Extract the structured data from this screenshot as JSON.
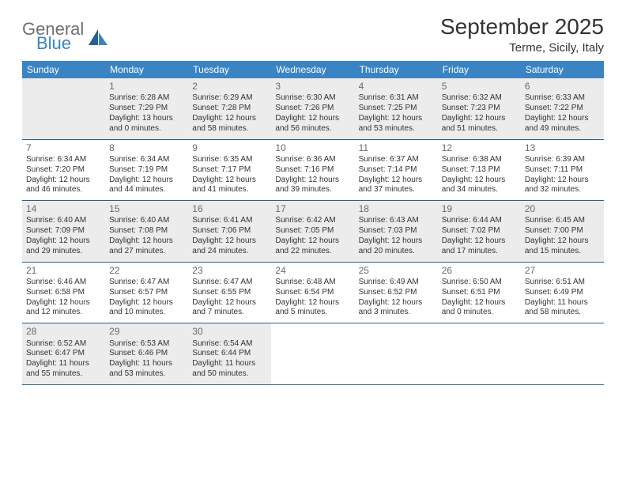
{
  "logo": {
    "word1": "General",
    "word2": "Blue",
    "icon_color": "#2a5f8f"
  },
  "title": "September 2025",
  "location": "Terme, Sicily, Italy",
  "header_bg": "#3a84c4",
  "header_text": "#ffffff",
  "row_border": "#2a5f8f",
  "shade_bg": "#ececec",
  "daynum_color": "#6a6a6a",
  "text_color": "#333333",
  "day_headers": [
    "Sunday",
    "Monday",
    "Tuesday",
    "Wednesday",
    "Thursday",
    "Friday",
    "Saturday"
  ],
  "weeks": [
    [
      {
        "n": "",
        "sunrise": "",
        "sunset": "",
        "daylight": "",
        "shade": true
      },
      {
        "n": "1",
        "sunrise": "Sunrise: 6:28 AM",
        "sunset": "Sunset: 7:29 PM",
        "daylight": "Daylight: 13 hours and 0 minutes.",
        "shade": true
      },
      {
        "n": "2",
        "sunrise": "Sunrise: 6:29 AM",
        "sunset": "Sunset: 7:28 PM",
        "daylight": "Daylight: 12 hours and 58 minutes.",
        "shade": true
      },
      {
        "n": "3",
        "sunrise": "Sunrise: 6:30 AM",
        "sunset": "Sunset: 7:26 PM",
        "daylight": "Daylight: 12 hours and 56 minutes.",
        "shade": true
      },
      {
        "n": "4",
        "sunrise": "Sunrise: 6:31 AM",
        "sunset": "Sunset: 7:25 PM",
        "daylight": "Daylight: 12 hours and 53 minutes.",
        "shade": true
      },
      {
        "n": "5",
        "sunrise": "Sunrise: 6:32 AM",
        "sunset": "Sunset: 7:23 PM",
        "daylight": "Daylight: 12 hours and 51 minutes.",
        "shade": true
      },
      {
        "n": "6",
        "sunrise": "Sunrise: 6:33 AM",
        "sunset": "Sunset: 7:22 PM",
        "daylight": "Daylight: 12 hours and 49 minutes.",
        "shade": true
      }
    ],
    [
      {
        "n": "7",
        "sunrise": "Sunrise: 6:34 AM",
        "sunset": "Sunset: 7:20 PM",
        "daylight": "Daylight: 12 hours and 46 minutes.",
        "shade": false
      },
      {
        "n": "8",
        "sunrise": "Sunrise: 6:34 AM",
        "sunset": "Sunset: 7:19 PM",
        "daylight": "Daylight: 12 hours and 44 minutes.",
        "shade": false
      },
      {
        "n": "9",
        "sunrise": "Sunrise: 6:35 AM",
        "sunset": "Sunset: 7:17 PM",
        "daylight": "Daylight: 12 hours and 41 minutes.",
        "shade": false
      },
      {
        "n": "10",
        "sunrise": "Sunrise: 6:36 AM",
        "sunset": "Sunset: 7:16 PM",
        "daylight": "Daylight: 12 hours and 39 minutes.",
        "shade": false
      },
      {
        "n": "11",
        "sunrise": "Sunrise: 6:37 AM",
        "sunset": "Sunset: 7:14 PM",
        "daylight": "Daylight: 12 hours and 37 minutes.",
        "shade": false
      },
      {
        "n": "12",
        "sunrise": "Sunrise: 6:38 AM",
        "sunset": "Sunset: 7:13 PM",
        "daylight": "Daylight: 12 hours and 34 minutes.",
        "shade": false
      },
      {
        "n": "13",
        "sunrise": "Sunrise: 6:39 AM",
        "sunset": "Sunset: 7:11 PM",
        "daylight": "Daylight: 12 hours and 32 minutes.",
        "shade": false
      }
    ],
    [
      {
        "n": "14",
        "sunrise": "Sunrise: 6:40 AM",
        "sunset": "Sunset: 7:09 PM",
        "daylight": "Daylight: 12 hours and 29 minutes.",
        "shade": true
      },
      {
        "n": "15",
        "sunrise": "Sunrise: 6:40 AM",
        "sunset": "Sunset: 7:08 PM",
        "daylight": "Daylight: 12 hours and 27 minutes.",
        "shade": true
      },
      {
        "n": "16",
        "sunrise": "Sunrise: 6:41 AM",
        "sunset": "Sunset: 7:06 PM",
        "daylight": "Daylight: 12 hours and 24 minutes.",
        "shade": true
      },
      {
        "n": "17",
        "sunrise": "Sunrise: 6:42 AM",
        "sunset": "Sunset: 7:05 PM",
        "daylight": "Daylight: 12 hours and 22 minutes.",
        "shade": true
      },
      {
        "n": "18",
        "sunrise": "Sunrise: 6:43 AM",
        "sunset": "Sunset: 7:03 PM",
        "daylight": "Daylight: 12 hours and 20 minutes.",
        "shade": true
      },
      {
        "n": "19",
        "sunrise": "Sunrise: 6:44 AM",
        "sunset": "Sunset: 7:02 PM",
        "daylight": "Daylight: 12 hours and 17 minutes.",
        "shade": true
      },
      {
        "n": "20",
        "sunrise": "Sunrise: 6:45 AM",
        "sunset": "Sunset: 7:00 PM",
        "daylight": "Daylight: 12 hours and 15 minutes.",
        "shade": true
      }
    ],
    [
      {
        "n": "21",
        "sunrise": "Sunrise: 6:46 AM",
        "sunset": "Sunset: 6:58 PM",
        "daylight": "Daylight: 12 hours and 12 minutes.",
        "shade": false
      },
      {
        "n": "22",
        "sunrise": "Sunrise: 6:47 AM",
        "sunset": "Sunset: 6:57 PM",
        "daylight": "Daylight: 12 hours and 10 minutes.",
        "shade": false
      },
      {
        "n": "23",
        "sunrise": "Sunrise: 6:47 AM",
        "sunset": "Sunset: 6:55 PM",
        "daylight": "Daylight: 12 hours and 7 minutes.",
        "shade": false
      },
      {
        "n": "24",
        "sunrise": "Sunrise: 6:48 AM",
        "sunset": "Sunset: 6:54 PM",
        "daylight": "Daylight: 12 hours and 5 minutes.",
        "shade": false
      },
      {
        "n": "25",
        "sunrise": "Sunrise: 6:49 AM",
        "sunset": "Sunset: 6:52 PM",
        "daylight": "Daylight: 12 hours and 3 minutes.",
        "shade": false
      },
      {
        "n": "26",
        "sunrise": "Sunrise: 6:50 AM",
        "sunset": "Sunset: 6:51 PM",
        "daylight": "Daylight: 12 hours and 0 minutes.",
        "shade": false
      },
      {
        "n": "27",
        "sunrise": "Sunrise: 6:51 AM",
        "sunset": "Sunset: 6:49 PM",
        "daylight": "Daylight: 11 hours and 58 minutes.",
        "shade": false
      }
    ],
    [
      {
        "n": "28",
        "sunrise": "Sunrise: 6:52 AM",
        "sunset": "Sunset: 6:47 PM",
        "daylight": "Daylight: 11 hours and 55 minutes.",
        "shade": true
      },
      {
        "n": "29",
        "sunrise": "Sunrise: 6:53 AM",
        "sunset": "Sunset: 6:46 PM",
        "daylight": "Daylight: 11 hours and 53 minutes.",
        "shade": true
      },
      {
        "n": "30",
        "sunrise": "Sunrise: 6:54 AM",
        "sunset": "Sunset: 6:44 PM",
        "daylight": "Daylight: 11 hours and 50 minutes.",
        "shade": true
      },
      {
        "n": "",
        "sunrise": "",
        "sunset": "",
        "daylight": "",
        "shade": false
      },
      {
        "n": "",
        "sunrise": "",
        "sunset": "",
        "daylight": "",
        "shade": false
      },
      {
        "n": "",
        "sunrise": "",
        "sunset": "",
        "daylight": "",
        "shade": false
      },
      {
        "n": "",
        "sunrise": "",
        "sunset": "",
        "daylight": "",
        "shade": false
      }
    ]
  ]
}
